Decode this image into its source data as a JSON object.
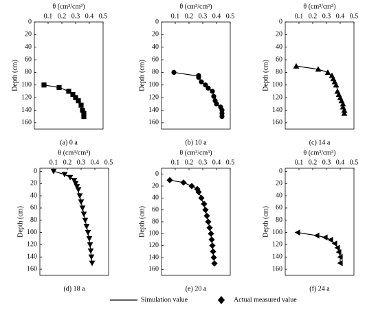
{
  "legend": [
    {
      "name": "Simulation value"
    },
    {
      "name": "Actual measured value"
    }
  ],
  "chart_data": [
    {
      "type": "scatter",
      "title": "(a) 0 a",
      "xlabel": "θ (cm³/cm³)",
      "ylabel": "Depth (cm)",
      "xlim": [
        0,
        0.5
      ],
      "xticks": [
        0.1,
        0.2,
        0.3,
        0.4,
        0.5
      ],
      "ylim": [
        0,
        170
      ],
      "yticks": [
        0,
        20,
        40,
        60,
        80,
        100,
        120,
        140,
        160
      ],
      "y_inverted": true,
      "series": [
        {
          "style": "line",
          "color": "#000000",
          "x": [
            0.07,
            0.18,
            0.25,
            0.28,
            0.3,
            0.32,
            0.34,
            0.35,
            0.36,
            0.36
          ],
          "values": [
            100,
            104,
            110,
            115,
            120,
            125,
            132,
            140,
            145,
            150
          ]
        },
        {
          "style": "points",
          "marker": "square",
          "color": "#000000",
          "x": [
            0.07,
            0.18,
            0.25,
            0.28,
            0.3,
            0.32,
            0.34,
            0.35,
            0.36,
            0.36
          ],
          "values": [
            100,
            104,
            110,
            115,
            120,
            125,
            132,
            140,
            145,
            150
          ]
        }
      ]
    },
    {
      "type": "scatter",
      "title": "(b) 10 a",
      "xlabel": "θ (cm³/cm³)",
      "ylabel": "Depth (cm)",
      "xlim": [
        0,
        0.5
      ],
      "xticks": [
        0.1,
        0.2,
        0.3,
        0.4,
        0.5
      ],
      "ylim": [
        0,
        170
      ],
      "yticks": [
        0,
        20,
        40,
        60,
        80,
        100,
        120,
        140,
        160
      ],
      "y_inverted": true,
      "series": [
        {
          "style": "line",
          "color": "#000000",
          "x": [
            0.09,
            0.27,
            0.29,
            0.32,
            0.35,
            0.38,
            0.4,
            0.42,
            0.44
          ],
          "values": [
            80,
            86,
            95,
            100,
            106,
            115,
            125,
            135,
            150
          ]
        },
        {
          "style": "points",
          "marker": "circle",
          "color": "#000000",
          "x": [
            0.09,
            0.27,
            0.27,
            0.29,
            0.32,
            0.34,
            0.37,
            0.38,
            0.39,
            0.4,
            0.43,
            0.44,
            0.44,
            0.44
          ],
          "values": [
            80,
            85,
            88,
            95,
            100,
            105,
            110,
            118,
            125,
            130,
            135,
            140,
            145,
            150
          ]
        }
      ]
    },
    {
      "type": "scatter",
      "title": "(c) 14 a",
      "xlabel": "θ (cm³/cm³)",
      "ylabel": "Depth (cm)",
      "xlim": [
        0,
        0.5
      ],
      "xticks": [
        0.1,
        0.2,
        0.3,
        0.4,
        0.5
      ],
      "ylim": [
        0,
        170
      ],
      "yticks": [
        0,
        20,
        40,
        60,
        80,
        100,
        120,
        140,
        160
      ],
      "y_inverted": true,
      "series": [
        {
          "style": "line",
          "color": "#000000",
          "x": [
            0.08,
            0.24,
            0.31,
            0.35,
            0.37,
            0.39,
            0.41,
            0.42,
            0.43
          ],
          "values": [
            70,
            75,
            80,
            90,
            100,
            115,
            125,
            135,
            145
          ]
        },
        {
          "style": "points",
          "marker": "triangle",
          "color": "#000000",
          "x": [
            0.08,
            0.24,
            0.31,
            0.34,
            0.35,
            0.36,
            0.37,
            0.38,
            0.39,
            0.4,
            0.41,
            0.42,
            0.42,
            0.43,
            0.43
          ],
          "values": [
            70,
            75,
            80,
            85,
            90,
            95,
            100,
            110,
            115,
            120,
            125,
            130,
            135,
            140,
            145
          ]
        }
      ]
    },
    {
      "type": "scatter",
      "title": "(d) 18 a",
      "xlabel": "θ (cm³/cm³)",
      "ylabel": "Depth (cm)",
      "xlim": [
        0,
        0.5
      ],
      "xticks": [
        0.1,
        0.2,
        0.3,
        0.4,
        0.5
      ],
      "ylim": [
        -5,
        170
      ],
      "yticks": [
        0,
        20,
        40,
        60,
        80,
        100,
        120,
        140,
        160
      ],
      "y_inverted": true,
      "series": [
        {
          "style": "line",
          "color": "#000000",
          "x": [
            0.1,
            0.18,
            0.22,
            0.25,
            0.27,
            0.29,
            0.31,
            0.33,
            0.35,
            0.365,
            0.375,
            0.38
          ],
          "values": [
            0,
            5,
            10,
            15,
            25,
            40,
            60,
            80,
            100,
            120,
            140,
            150
          ]
        },
        {
          "style": "points",
          "marker": "triangle-down",
          "color": "#000000",
          "x": [
            0.1,
            0.18,
            0.22,
            0.25,
            0.26,
            0.27,
            0.28,
            0.29,
            0.3,
            0.31,
            0.32,
            0.33,
            0.34,
            0.35,
            0.36,
            0.365,
            0.37,
            0.375,
            0.38
          ],
          "values": [
            0,
            5,
            10,
            15,
            20,
            25,
            30,
            40,
            50,
            60,
            70,
            80,
            90,
            100,
            110,
            120,
            130,
            140,
            150
          ]
        }
      ]
    },
    {
      "type": "scatter",
      "title": "(e) 20 a",
      "xlabel": "θ (cm³/cm³)",
      "ylabel": "Depth (cm)",
      "xlim": [
        0,
        0.5
      ],
      "xticks": [
        0.1,
        0.2,
        0.3,
        0.4,
        0.5
      ],
      "ylim": [
        -10,
        170
      ],
      "yticks": [
        0,
        20,
        40,
        60,
        80,
        100,
        120,
        140,
        160
      ],
      "y_inverted": true,
      "series": [
        {
          "style": "line",
          "color": "#000000",
          "x": [
            0.06,
            0.16,
            0.22,
            0.26,
            0.29,
            0.32,
            0.34,
            0.36,
            0.37,
            0.38,
            0.385
          ],
          "values": [
            10,
            14,
            20,
            25,
            40,
            60,
            80,
            100,
            120,
            140,
            150
          ]
        },
        {
          "style": "points",
          "marker": "diamond",
          "color": "#000000",
          "x": [
            0.06,
            0.16,
            0.22,
            0.26,
            0.27,
            0.29,
            0.31,
            0.32,
            0.33,
            0.34,
            0.35,
            0.36,
            0.365,
            0.37,
            0.375,
            0.38,
            0.385
          ],
          "values": [
            10,
            14,
            20,
            25,
            30,
            40,
            50,
            60,
            70,
            80,
            90,
            100,
            110,
            120,
            130,
            140,
            150
          ]
        }
      ]
    },
    {
      "type": "scatter",
      "title": "(f) 24 a",
      "xlabel": "θ (cm³/cm³)",
      "ylabel": "Depth (cm)",
      "xlim": [
        0,
        0.5
      ],
      "xticks": [
        0.1,
        0.2,
        0.3,
        0.4,
        0.5
      ],
      "ylim": [
        -5,
        170
      ],
      "yticks": [
        0,
        20,
        40,
        60,
        80,
        100,
        120,
        140,
        160
      ],
      "y_inverted": true,
      "series": [
        {
          "style": "line",
          "color": "#000000",
          "x": [
            0.09,
            0.23,
            0.29,
            0.33,
            0.36,
            0.38,
            0.39,
            0.4,
            0.4
          ],
          "values": [
            100,
            105,
            108,
            112,
            118,
            125,
            132,
            140,
            150
          ]
        },
        {
          "style": "points",
          "marker": "triangle-left",
          "color": "#000000",
          "x": [
            0.09,
            0.23,
            0.29,
            0.33,
            0.36,
            0.38,
            0.39,
            0.4,
            0.4
          ],
          "values": [
            100,
            105,
            108,
            112,
            118,
            125,
            132,
            140,
            150
          ]
        }
      ]
    }
  ]
}
